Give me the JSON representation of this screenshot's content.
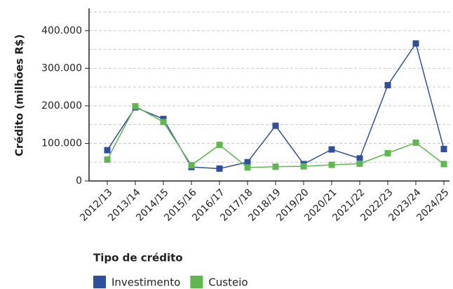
{
  "chart_data": {
    "type": "line",
    "y_label": "Crédito (milhões R$)",
    "categories": [
      "2012/13",
      "2013/14",
      "2014/15",
      "2015/16",
      "2016/17",
      "2017/18",
      "2018/19",
      "2019/20",
      "2020/21",
      "2021/22",
      "2022/23",
      "2023/24",
      "2024/25"
    ],
    "series": [
      {
        "name": "Investimento",
        "color": "#2f4f9e",
        "values": [
          82000,
          196000,
          165000,
          37000,
          33000,
          50000,
          147000,
          45000,
          84000,
          60000,
          255000,
          366000,
          85000
        ]
      },
      {
        "name": "Custeio",
        "color": "#5fb84f",
        "values": [
          57000,
          199000,
          157000,
          42000,
          96000,
          36000,
          38000,
          39000,
          43000,
          46000,
          74000,
          102000,
          45000
        ]
      }
    ],
    "ylim": [
      0,
      450000
    ],
    "yticks": [
      0,
      {
        "value": 100000,
        "label": "100.000"
      },
      {
        "value": 200000,
        "label": "200.000"
      },
      {
        "value": 300000,
        "label": "300.000"
      },
      {
        "value": 400000,
        "label": "400.000"
      }
    ],
    "minor_grid": [
      50000,
      150000,
      250000,
      350000,
      450000
    ],
    "grid": true,
    "legend_title": "Tipo de crédito",
    "legend_position": "bottom"
  }
}
